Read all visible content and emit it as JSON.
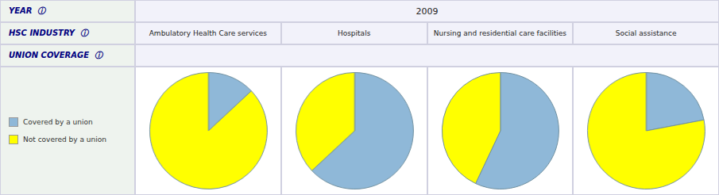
{
  "chart_data": [
    {
      "type": "pie",
      "title": "Ambulatory Health Care services",
      "annotations": [
        "YEAR  ⓘ",
        "2009",
        "HSC INDUSTRY  ⓘ",
        "UNION COVERAGE  ⓘ"
      ],
      "categories": [
        "Covered by a union",
        "Not covered by a union"
      ],
      "values": [
        13,
        87
      ],
      "colors": [
        "#8fb8d8",
        "#ffff00"
      ],
      "legend": "left"
    },
    {
      "type": "pie",
      "title": "Hospitals",
      "categories": [
        "Covered by a union",
        "Not covered by a union"
      ],
      "values": [
        63,
        37
      ],
      "colors": [
        "#8fb8d8",
        "#ffff00"
      ]
    },
    {
      "type": "pie",
      "title": "Nursing and residential care facilities",
      "categories": [
        "Covered by a union",
        "Not covered by a union"
      ],
      "values": [
        57,
        43
      ],
      "colors": [
        "#8fb8d8",
        "#ffff00"
      ]
    },
    {
      "type": "pie",
      "title": "Social assistance",
      "categories": [
        "Covered by a union",
        "Not covered by a union"
      ],
      "values": [
        22,
        78
      ],
      "colors": [
        "#8fb8d8",
        "#ffff00"
      ]
    }
  ]
}
